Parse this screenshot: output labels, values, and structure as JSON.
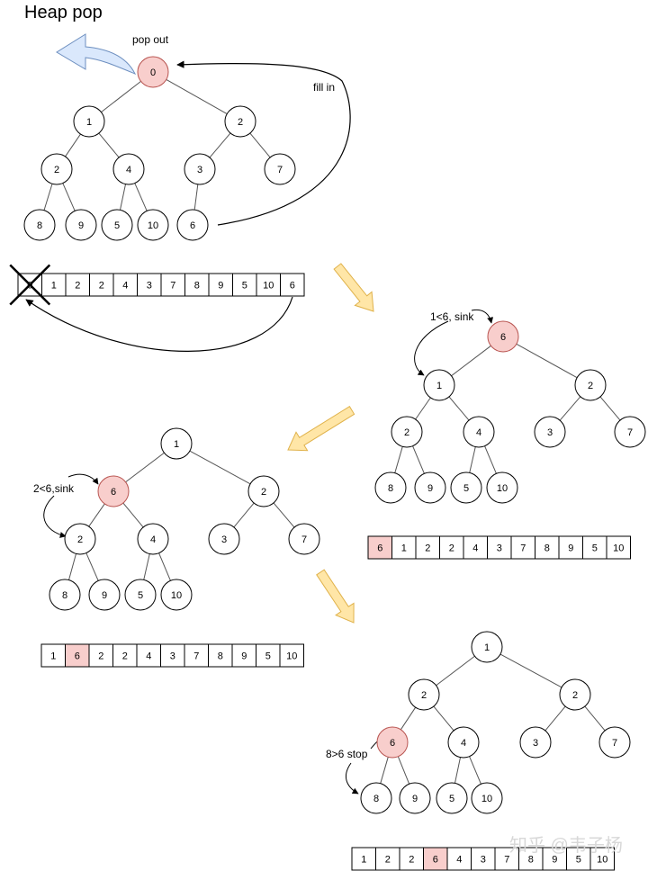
{
  "title": "Heap pop",
  "colors": {
    "highlight": "#f8cecc",
    "highlight_stroke": "#b85450",
    "pop_arrow": "#dae8fc",
    "pop_arrow_stroke": "#6c8ebf",
    "step_arrow": "#ffe6a7",
    "step_arrow_stroke": "#e0b24b"
  },
  "trees": [
    {
      "name": "tree-initial",
      "nodes": [
        "0",
        "1",
        "2",
        "2",
        "4",
        "3",
        "7",
        "8",
        "9",
        "5",
        "10",
        "6"
      ],
      "highlight": [
        0
      ]
    },
    {
      "name": "tree-step1",
      "nodes": [
        "6",
        "1",
        "2",
        "2",
        "4",
        "3",
        "7",
        "8",
        "9",
        "5",
        "10"
      ],
      "highlight": [
        0
      ]
    },
    {
      "name": "tree-step2",
      "nodes": [
        "1",
        "6",
        "2",
        "2",
        "4",
        "3",
        "7",
        "8",
        "9",
        "5",
        "10"
      ],
      "highlight": [
        1
      ]
    },
    {
      "name": "tree-step3",
      "nodes": [
        "1",
        "2",
        "2",
        "6",
        "4",
        "3",
        "7",
        "8",
        "9",
        "5",
        "10"
      ],
      "highlight": [
        3
      ]
    }
  ],
  "arrays": [
    {
      "name": "array-initial",
      "cells": [
        "0",
        "1",
        "2",
        "2",
        "4",
        "3",
        "7",
        "8",
        "9",
        "5",
        "10",
        "6"
      ],
      "highlight": [],
      "crossed": [
        0
      ]
    },
    {
      "name": "array-step1",
      "cells": [
        "6",
        "1",
        "2",
        "2",
        "4",
        "3",
        "7",
        "8",
        "9",
        "5",
        "10"
      ],
      "highlight": [
        0
      ],
      "crossed": []
    },
    {
      "name": "array-step2",
      "cells": [
        "1",
        "6",
        "2",
        "2",
        "4",
        "3",
        "7",
        "8",
        "9",
        "5",
        "10"
      ],
      "highlight": [
        1
      ],
      "crossed": []
    },
    {
      "name": "array-step3",
      "cells": [
        "1",
        "2",
        "2",
        "6",
        "4",
        "3",
        "7",
        "8",
        "9",
        "5",
        "10"
      ],
      "highlight": [
        3
      ],
      "crossed": []
    }
  ],
  "annotations": {
    "pop_out": "pop out",
    "fill_in": "fill in",
    "sink1": "1<6, sink",
    "sink2": "2<6,sink",
    "stop": "8>6 stop"
  },
  "watermark": "知乎 @韦子杨"
}
